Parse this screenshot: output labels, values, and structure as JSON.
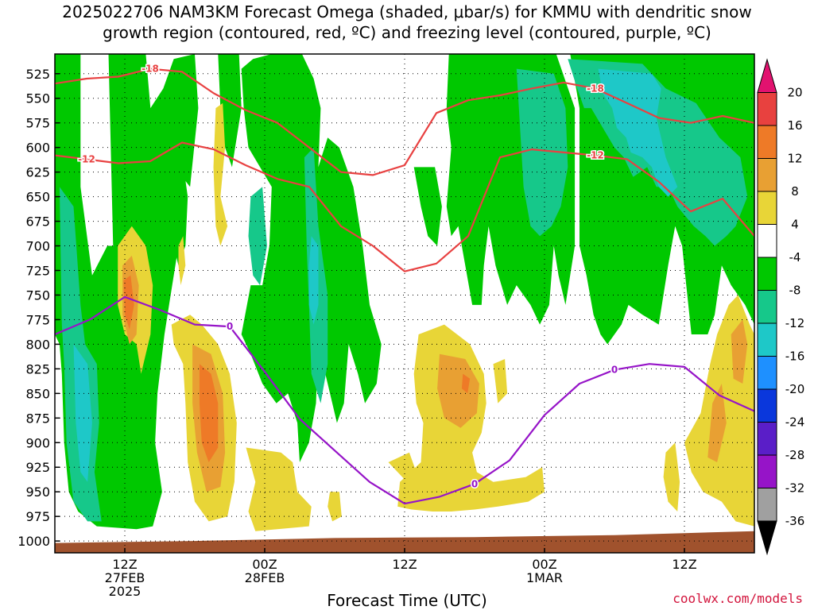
{
  "title_line_1": "2025022706 NAM3KM Forecast Omega (shaded, μbar/s) for KMMU with dendritic snow",
  "title_line_2": "growth region (contoured, red, ºC) and freezing level (contoured, purple, ºC)",
  "credit": "coolwx.com/models",
  "chart_data": {
    "type": "heatmap",
    "xlabel": "Forecast Time (UTC)",
    "ylabel": "",
    "x_ticks": [
      {
        "hour": 6,
        "lines": [
          "12Z",
          "27FEB",
          "2025"
        ]
      },
      {
        "hour": 18,
        "lines": [
          "00Z",
          "28FEB"
        ]
      },
      {
        "hour": 30,
        "lines": [
          "12Z"
        ]
      },
      {
        "hour": 42,
        "lines": [
          "00Z",
          "1MAR"
        ]
      },
      {
        "hour": 54,
        "lines": [
          "12Z"
        ]
      }
    ],
    "xlim": [
      0,
      60
    ],
    "ylim": [
      1012,
      505
    ],
    "y_ticks": [
      525,
      550,
      575,
      600,
      625,
      650,
      675,
      700,
      725,
      750,
      775,
      800,
      825,
      850,
      875,
      900,
      925,
      950,
      975,
      1000
    ],
    "colorbar": {
      "tick_labels": [
        "20",
        "16",
        "12",
        "8",
        "4",
        "-4",
        "-8",
        "-12",
        "-16",
        "-20",
        "-24",
        "-28",
        "-32",
        "-36"
      ],
      "colors": [
        "#e2126f",
        "#e8413f",
        "#ee7a27",
        "#e8a033",
        "#e8d537",
        "#ffffff",
        "#00c800",
        "#16c88a",
        "#1ec8c8",
        "#1e90ff",
        "#0a37dc",
        "#5a1ec8",
        "#9614c8",
        "#a0a0a0",
        "#000000"
      ]
    },
    "series": [
      {
        "name": "-18",
        "color": "#e84141",
        "pressure_hpa": [
          535,
          530,
          528,
          520,
          523,
          545,
          562,
          575,
          600,
          625,
          628,
          618,
          565,
          552,
          547,
          540,
          534,
          540,
          555,
          570,
          575,
          568,
          575
        ]
      },
      {
        "name": "-12",
        "color": "#e84141",
        "pressure_hpa": [
          608,
          612,
          616,
          614,
          595,
          602,
          618,
          632,
          640,
          680,
          700,
          726,
          718,
          690,
          610,
          602,
          605,
          608,
          612,
          635,
          665,
          652,
          690
        ]
      },
      {
        "name": "0",
        "color": "#9614c8",
        "pressure_hpa": [
          790,
          775,
          752,
          765,
          780,
          782,
          828,
          876,
          908,
          940,
          962,
          955,
          942,
          918,
          872,
          840,
          826,
          820,
          823,
          852,
          868
        ]
      }
    ],
    "omega_regions": [
      {
        "range": "-8 to -4",
        "color": "#00c800"
      },
      {
        "range": "-12 to -8",
        "color": "#16c88a"
      },
      {
        "range": "-16 to -12",
        "color": "#1ec8c8"
      },
      {
        "range": "4 to 8",
        "color": "#e8d537"
      },
      {
        "range": "8 to 12",
        "color": "#e8a033"
      },
      {
        "range": "12 to 16",
        "color": "#ee7a27"
      }
    ],
    "ground_color": "#a0522d",
    "grid": true
  }
}
